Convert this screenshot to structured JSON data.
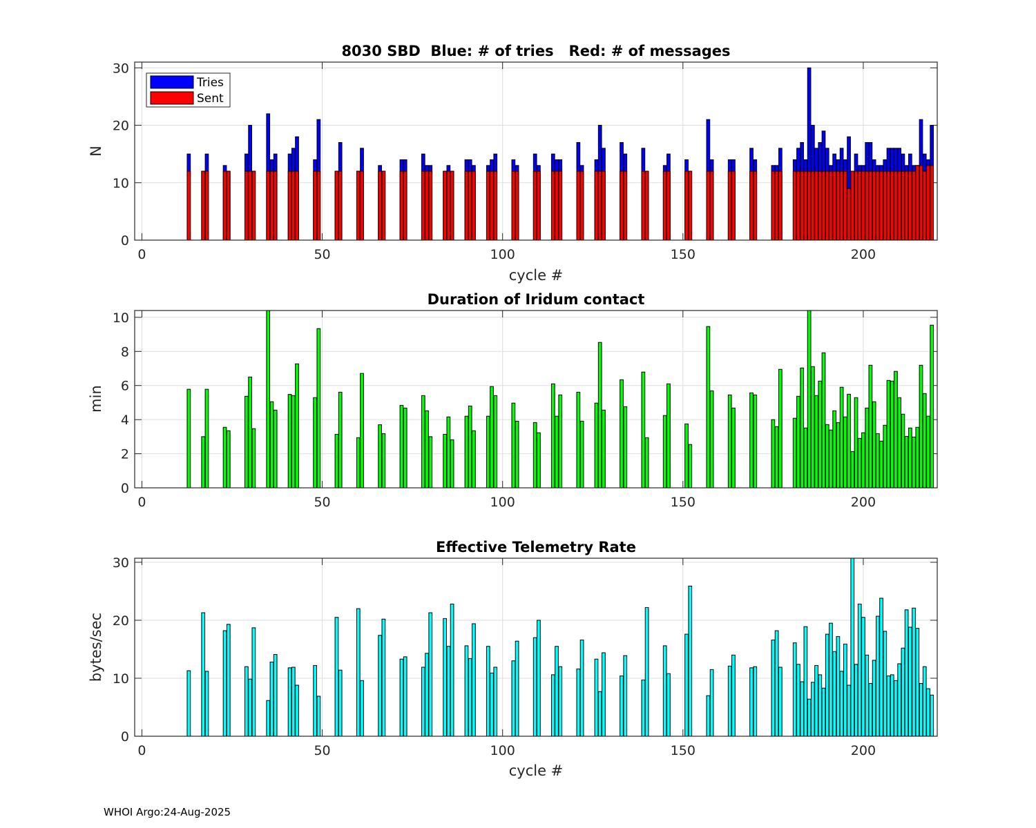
{
  "footer": "WHOI Argo:24-Aug-2025",
  "colors": {
    "tries": "#0000ff",
    "sent": "#ff0000",
    "duration": "#00ff00",
    "rate": "#00ffff"
  },
  "chart_data": [
    {
      "type": "bar",
      "title": "8030 SBD  Blue: # of tries   Red: # of messages",
      "xlabel": "cycle #",
      "ylabel": "N",
      "xlim": [
        -2,
        220.5
      ],
      "ylim": [
        0,
        31
      ],
      "xticks": [
        "0",
        "50",
        "100",
        "150",
        "200"
      ],
      "yticks": [
        "0",
        "10",
        "20",
        "30"
      ],
      "grid": true,
      "legend": {
        "placement": "top-left",
        "entries": [
          "Tries",
          "Sent"
        ]
      },
      "x": [
        13,
        17,
        18,
        23,
        24,
        29,
        30,
        31,
        35,
        36,
        37,
        41,
        42,
        43,
        48,
        49,
        54,
        55,
        60,
        61,
        66,
        67,
        72,
        73,
        78,
        79,
        80,
        84,
        85,
        86,
        90,
        91,
        92,
        96,
        97,
        98,
        103,
        104,
        109,
        110,
        114,
        115,
        116,
        121,
        122,
        126,
        127,
        128,
        133,
        134,
        139,
        140,
        145,
        146,
        151,
        152,
        157,
        158,
        163,
        164,
        169,
        170,
        175,
        176,
        177,
        181,
        182,
        183,
        184,
        185,
        186,
        187,
        188,
        189,
        190,
        191,
        192,
        193,
        194,
        195,
        196,
        197,
        198,
        199,
        200,
        201,
        202,
        203,
        204,
        205,
        206,
        207,
        208,
        209,
        210,
        211,
        212,
        213,
        214,
        215,
        216,
        217,
        218,
        219
      ],
      "series": [
        {
          "name": "Tries",
          "values": [
            15,
            12,
            15,
            13,
            12,
            15,
            20,
            12,
            22,
            14,
            15,
            15,
            16,
            18,
            14,
            21,
            12,
            17,
            12,
            16,
            13,
            12,
            14,
            14,
            15,
            13,
            13,
            12,
            13,
            12,
            14,
            14,
            13,
            13,
            14,
            15,
            14,
            13,
            15,
            13,
            15,
            14,
            14,
            17,
            13,
            14,
            20,
            16,
            17,
            15,
            16,
            12,
            13,
            15,
            14,
            12,
            21,
            14,
            14,
            14,
            16,
            14,
            13,
            13,
            16,
            14,
            16,
            17,
            14,
            30,
            20,
            16,
            17,
            19,
            16,
            13,
            15,
            14,
            16,
            14,
            18,
            12,
            15,
            13,
            13,
            17,
            17,
            14,
            13,
            13,
            14,
            16,
            16,
            16,
            16,
            15,
            13,
            15,
            13,
            13,
            21,
            15,
            14,
            20
          ]
        },
        {
          "name": "Sent",
          "values": [
            12,
            12,
            12,
            12,
            12,
            12,
            12,
            12,
            12,
            12,
            12,
            12,
            12,
            12,
            12,
            12,
            12,
            12,
            12,
            12,
            12,
            12,
            12,
            12,
            12,
            12,
            12,
            12,
            12,
            12,
            12,
            12,
            12,
            12,
            12,
            12,
            12,
            12,
            12,
            12,
            12,
            12,
            12,
            12,
            12,
            12,
            12,
            12,
            12,
            12,
            12,
            12,
            12,
            12,
            12,
            12,
            12,
            12,
            12,
            12,
            12,
            12,
            12,
            12,
            12,
            12,
            12,
            12,
            12,
            12,
            12,
            12,
            12,
            12,
            12,
            12,
            12,
            12,
            12,
            12,
            9,
            12,
            12,
            12,
            12,
            12,
            12,
            12,
            12,
            12,
            12,
            12,
            12,
            12,
            12,
            12,
            12,
            12,
            12,
            13,
            13,
            12,
            13,
            13
          ]
        }
      ]
    },
    {
      "type": "bar",
      "title": "Duration of Iridum contact",
      "xlabel": "",
      "ylabel": "min",
      "xlim": [
        -2,
        220.5
      ],
      "ylim": [
        0,
        10.4
      ],
      "xticks": [
        "0",
        "50",
        "100",
        "150",
        "200"
      ],
      "yticks": [
        "0",
        "2",
        "4",
        "6",
        "8",
        "10"
      ],
      "grid": true,
      "x": [
        13,
        17,
        18,
        23,
        24,
        29,
        30,
        31,
        35,
        36,
        37,
        41,
        42,
        43,
        48,
        49,
        54,
        55,
        60,
        61,
        66,
        67,
        72,
        73,
        78,
        79,
        80,
        84,
        85,
        86,
        90,
        91,
        92,
        96,
        97,
        98,
        103,
        104,
        109,
        110,
        114,
        115,
        116,
        121,
        122,
        126,
        127,
        128,
        133,
        134,
        139,
        140,
        145,
        146,
        151,
        152,
        157,
        158,
        163,
        164,
        169,
        170,
        175,
        176,
        177,
        181,
        182,
        183,
        184,
        185,
        186,
        187,
        188,
        189,
        190,
        191,
        192,
        193,
        194,
        195,
        196,
        197,
        198,
        199,
        200,
        201,
        202,
        203,
        204,
        205,
        206,
        207,
        208,
        209,
        210,
        211,
        212,
        213,
        214,
        215,
        216,
        217,
        218,
        219
      ],
      "values": [
        5.78,
        3.0,
        5.78,
        3.55,
        3.35,
        5.37,
        6.5,
        3.47,
        10.4,
        5.05,
        4.56,
        5.48,
        5.41,
        7.27,
        5.29,
        9.34,
        3.14,
        5.61,
        2.94,
        6.71,
        3.7,
        3.18,
        4.84,
        4.68,
        5.41,
        4.52,
        3.0,
        3.14,
        4.16,
        2.82,
        4.2,
        4.8,
        3.35,
        4.2,
        5.94,
        5.41,
        4.97,
        3.91,
        3.83,
        3.23,
        6.1,
        4.2,
        5.45,
        5.61,
        3.91,
        4.97,
        8.53,
        4.56,
        6.34,
        4.76,
        6.79,
        2.94,
        4.24,
        6.1,
        3.75,
        2.54,
        9.46,
        5.69,
        5.45,
        4.68,
        5.57,
        5.45,
        4.0,
        3.59,
        6.95,
        4.08,
        5.37,
        7.03,
        3.51,
        10.4,
        7.11,
        5.41,
        6.26,
        7.92,
        3.71,
        3.39,
        4.52,
        3.83,
        5.9,
        4.16,
        5.49,
        2.13,
        5.29,
        2.9,
        3.23,
        4.68,
        7.19,
        5.05,
        3.18,
        2.74,
        3.67,
        6.3,
        6.26,
        6.83,
        5.29,
        4.32,
        3.02,
        3.51,
        2.98,
        3.55,
        7.19,
        5.53,
        4.2,
        9.54
      ]
    },
    {
      "type": "bar",
      "title": "Effective Telemetry Rate",
      "xlabel": "cycle #",
      "ylabel": "bytes/sec",
      "xlim": [
        -2,
        220.5
      ],
      "ylim": [
        0,
        30.7
      ],
      "xticks": [
        "0",
        "50",
        "100",
        "150",
        "200"
      ],
      "yticks": [
        "0",
        "10",
        "20",
        "30"
      ],
      "grid": true,
      "x": [
        13,
        17,
        18,
        23,
        24,
        29,
        30,
        31,
        35,
        36,
        37,
        41,
        42,
        43,
        48,
        49,
        54,
        55,
        60,
        61,
        66,
        67,
        72,
        73,
        78,
        79,
        80,
        84,
        85,
        86,
        90,
        91,
        92,
        96,
        97,
        98,
        103,
        104,
        109,
        110,
        114,
        115,
        116,
        121,
        122,
        126,
        127,
        128,
        133,
        134,
        139,
        140,
        145,
        146,
        151,
        152,
        157,
        158,
        163,
        164,
        169,
        170,
        175,
        176,
        177,
        181,
        182,
        183,
        184,
        185,
        186,
        187,
        188,
        189,
        190,
        191,
        192,
        193,
        194,
        195,
        196,
        197,
        198,
        199,
        200,
        201,
        202,
        203,
        204,
        205,
        206,
        207,
        208,
        209,
        210,
        211,
        212,
        213,
        214,
        215,
        216,
        217,
        218,
        219
      ],
      "values": [
        11.3,
        21.3,
        11.2,
        18.2,
        19.3,
        12.0,
        9.85,
        18.7,
        6.16,
        12.8,
        14.1,
        11.8,
        11.9,
        8.8,
        12.2,
        6.9,
        20.5,
        11.4,
        22.0,
        9.6,
        17.4,
        20.2,
        13.3,
        13.7,
        11.9,
        14.3,
        21.3,
        20.3,
        15.5,
        22.8,
        15.6,
        13.4,
        19.4,
        15.5,
        10.9,
        11.9,
        13.0,
        16.4,
        17.0,
        20.0,
        10.6,
        15.5,
        12.0,
        11.6,
        16.6,
        13.3,
        7.7,
        14.4,
        10.4,
        13.9,
        9.7,
        22.2,
        15.6,
        10.8,
        17.6,
        25.9,
        7.0,
        11.5,
        12.1,
        14.0,
        11.8,
        12.0,
        16.6,
        18.2,
        11.9,
        16.1,
        12.4,
        9.4,
        18.9,
        6.4,
        9.3,
        12.2,
        10.6,
        8.3,
        17.6,
        19.5,
        14.6,
        17.2,
        11.2,
        15.9,
        8.8,
        30.7,
        12.4,
        22.8,
        20.5,
        14.0,
        9.1,
        13.1,
        20.7,
        23.8,
        18.1,
        10.4,
        10.6,
        9.6,
        12.5,
        15.2,
        21.8,
        18.8,
        22.1,
        18.6,
        9.1,
        12.0,
        8.2,
        7.1
      ]
    }
  ]
}
